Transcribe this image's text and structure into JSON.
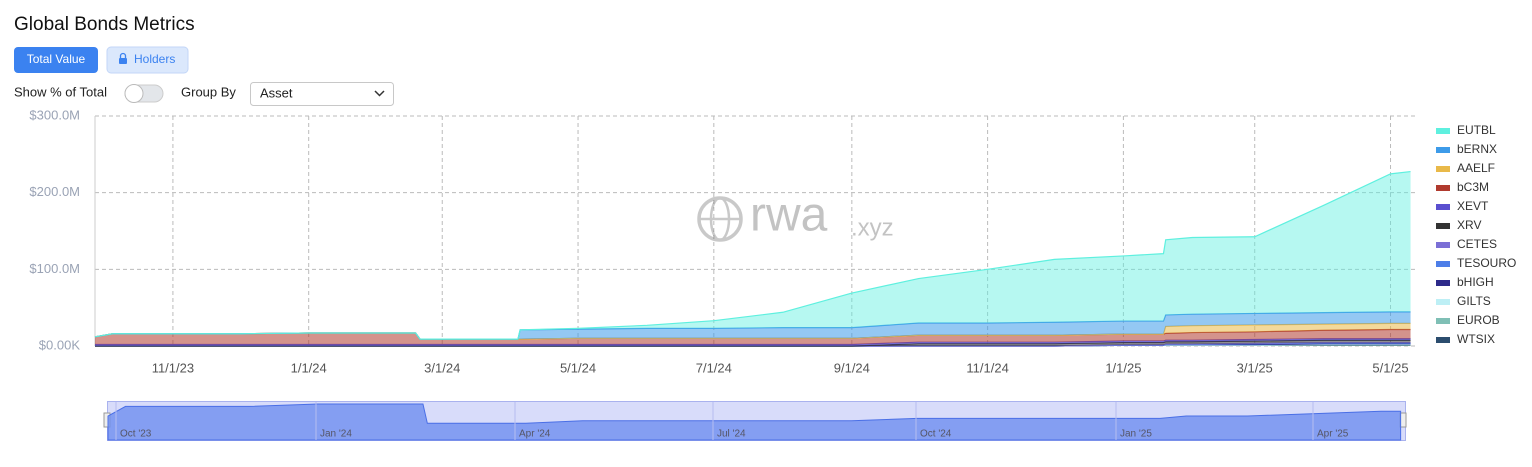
{
  "header": {
    "title": "Global Bonds Metrics",
    "tab_active": "Total Value",
    "tab_locked": "Holders",
    "toggle_label": "Show % of Total",
    "group_by_label": "Group By",
    "group_by_value": "Asset"
  },
  "watermark": {
    "main": "rwa",
    "suffix": ".xyz"
  },
  "navigator": {
    "labels": [
      "Oct '23",
      "Jan '24",
      "Apr '24",
      "Jul '24",
      "Oct '24",
      "Jan '25",
      "Apr '25"
    ]
  },
  "chart_data": {
    "type": "stacked_area",
    "legend": "right",
    "grid": true,
    "x": [
      "9/27/23",
      "10/5/23",
      "11/1/23",
      "12/1/23",
      "1/1/24",
      "2/1/24",
      "2/18/24",
      "2/20/24",
      "3/1/24",
      "4/4/24",
      "4/5/24",
      "5/1/24",
      "6/1/24",
      "7/1/24",
      "8/1/24",
      "9/1/24",
      "10/1/24",
      "11/1/24",
      "12/1/24",
      "1/1/25",
      "1/19/25",
      "1/20/25",
      "2/1/25",
      "3/1/25",
      "4/1/25",
      "5/1/25",
      "5/10/25"
    ],
    "xlim": [
      "9/27/23",
      "5/12/25"
    ],
    "xticks": [
      "11/1/23",
      "1/1/24",
      "3/1/24",
      "5/1/24",
      "7/1/24",
      "9/1/24",
      "11/1/24",
      "1/1/25",
      "3/1/25",
      "5/1/25"
    ],
    "ylim": [
      0,
      300
    ],
    "yticks": [
      {
        "value": 0,
        "label": "$0.00K"
      },
      {
        "value": 100,
        "label": "$100.0M"
      },
      {
        "value": 200,
        "label": "$200.0M"
      },
      {
        "value": 300,
        "label": "$300.0M"
      }
    ],
    "series": [
      {
        "name": "EUTBL",
        "color": "#5ef0df",
        "values": [
          0,
          0,
          0,
          0,
          0,
          0,
          0,
          0,
          0,
          0,
          0,
          1,
          4,
          10,
          20,
          45,
          58,
          70,
          82,
          85,
          88,
          98,
          100,
          100,
          140,
          180,
          183
        ]
      },
      {
        "name": "bERNX",
        "color": "#3d9be9",
        "values": [
          0,
          0,
          0,
          0,
          0,
          0,
          0,
          0,
          0,
          0,
          12,
          12,
          13,
          13,
          14,
          14,
          16,
          16,
          17,
          17,
          17,
          15,
          15,
          15,
          15,
          15,
          15
        ]
      },
      {
        "name": "AAELF",
        "color": "#e9b949",
        "values": [
          0,
          0,
          0,
          0,
          0,
          0,
          0,
          0,
          0,
          0,
          0,
          0,
          0,
          0,
          0,
          0,
          0,
          0,
          0,
          0,
          0,
          9,
          9,
          9,
          8,
          8,
          8
        ]
      },
      {
        "name": "bC3M",
        "color": "#b03a2e",
        "values": [
          10,
          14,
          14,
          14,
          15,
          15,
          15,
          7,
          7,
          7,
          7,
          8,
          8,
          8,
          8,
          8,
          9,
          9,
          9,
          9,
          9,
          9,
          10,
          10,
          11,
          12,
          12
        ]
      },
      {
        "name": "XEVT",
        "color": "#5a4fcf",
        "values": [
          2,
          2,
          2,
          2,
          2,
          2,
          2,
          2,
          2,
          2,
          2,
          2,
          2,
          2,
          2,
          2,
          2,
          2,
          2,
          2,
          2,
          2,
          2,
          2,
          2,
          2,
          2
        ]
      },
      {
        "name": "XRV",
        "color": "#333333",
        "values": [
          0,
          0,
          0,
          0,
          0,
          0,
          0,
          0,
          0,
          0,
          0,
          0,
          0,
          0,
          0,
          0,
          3,
          3,
          3,
          3,
          3,
          3,
          3,
          3,
          3,
          3,
          3
        ]
      },
      {
        "name": "CETES",
        "color": "#7b6fd6",
        "values": [
          0,
          0,
          0,
          0,
          0,
          0,
          0,
          0,
          0,
          0,
          0,
          0,
          0,
          0,
          0,
          0,
          0,
          0,
          0,
          0.5,
          0.5,
          0.5,
          0.5,
          0.5,
          0.5,
          0.5,
          0.5
        ]
      },
      {
        "name": "TESOURO",
        "color": "#4d7ee8",
        "values": [
          0,
          0,
          0,
          0,
          0,
          0,
          0,
          0,
          0,
          0,
          0,
          0,
          0,
          0,
          0,
          0,
          0,
          0,
          0,
          0,
          0,
          0,
          0,
          1,
          1,
          1,
          1
        ]
      },
      {
        "name": "bHIGH",
        "color": "#2d2a8a",
        "values": [
          0,
          0,
          0,
          0,
          0,
          0,
          0,
          0,
          0,
          0,
          0,
          0,
          0,
          0,
          0,
          0,
          0,
          0,
          0,
          0,
          0,
          1,
          1,
          1,
          1,
          1,
          1
        ]
      },
      {
        "name": "GILTS",
        "color": "#bdeff5",
        "values": [
          0,
          0,
          0,
          0,
          0,
          0,
          0,
          0,
          0,
          0,
          0,
          0,
          0,
          0,
          0,
          0,
          0,
          0,
          0,
          0,
          0,
          0,
          0,
          0,
          0.5,
          0.5,
          0.5
        ]
      },
      {
        "name": "EUROB",
        "color": "#7fbfb5",
        "values": [
          0,
          0,
          0,
          0,
          0,
          0,
          0,
          0,
          0,
          0,
          0,
          0,
          0,
          0,
          0,
          0,
          0,
          0,
          0,
          0,
          0,
          0,
          0,
          0,
          0.5,
          0.5,
          0.5
        ]
      },
      {
        "name": "WTSIX",
        "color": "#2b4d6e",
        "values": [
          0,
          0,
          0,
          0,
          0,
          0,
          0,
          0,
          0,
          0,
          0,
          0,
          0,
          0,
          0,
          0,
          0,
          0,
          0,
          1,
          1,
          1,
          1,
          1,
          1,
          1,
          1
        ]
      }
    ]
  }
}
